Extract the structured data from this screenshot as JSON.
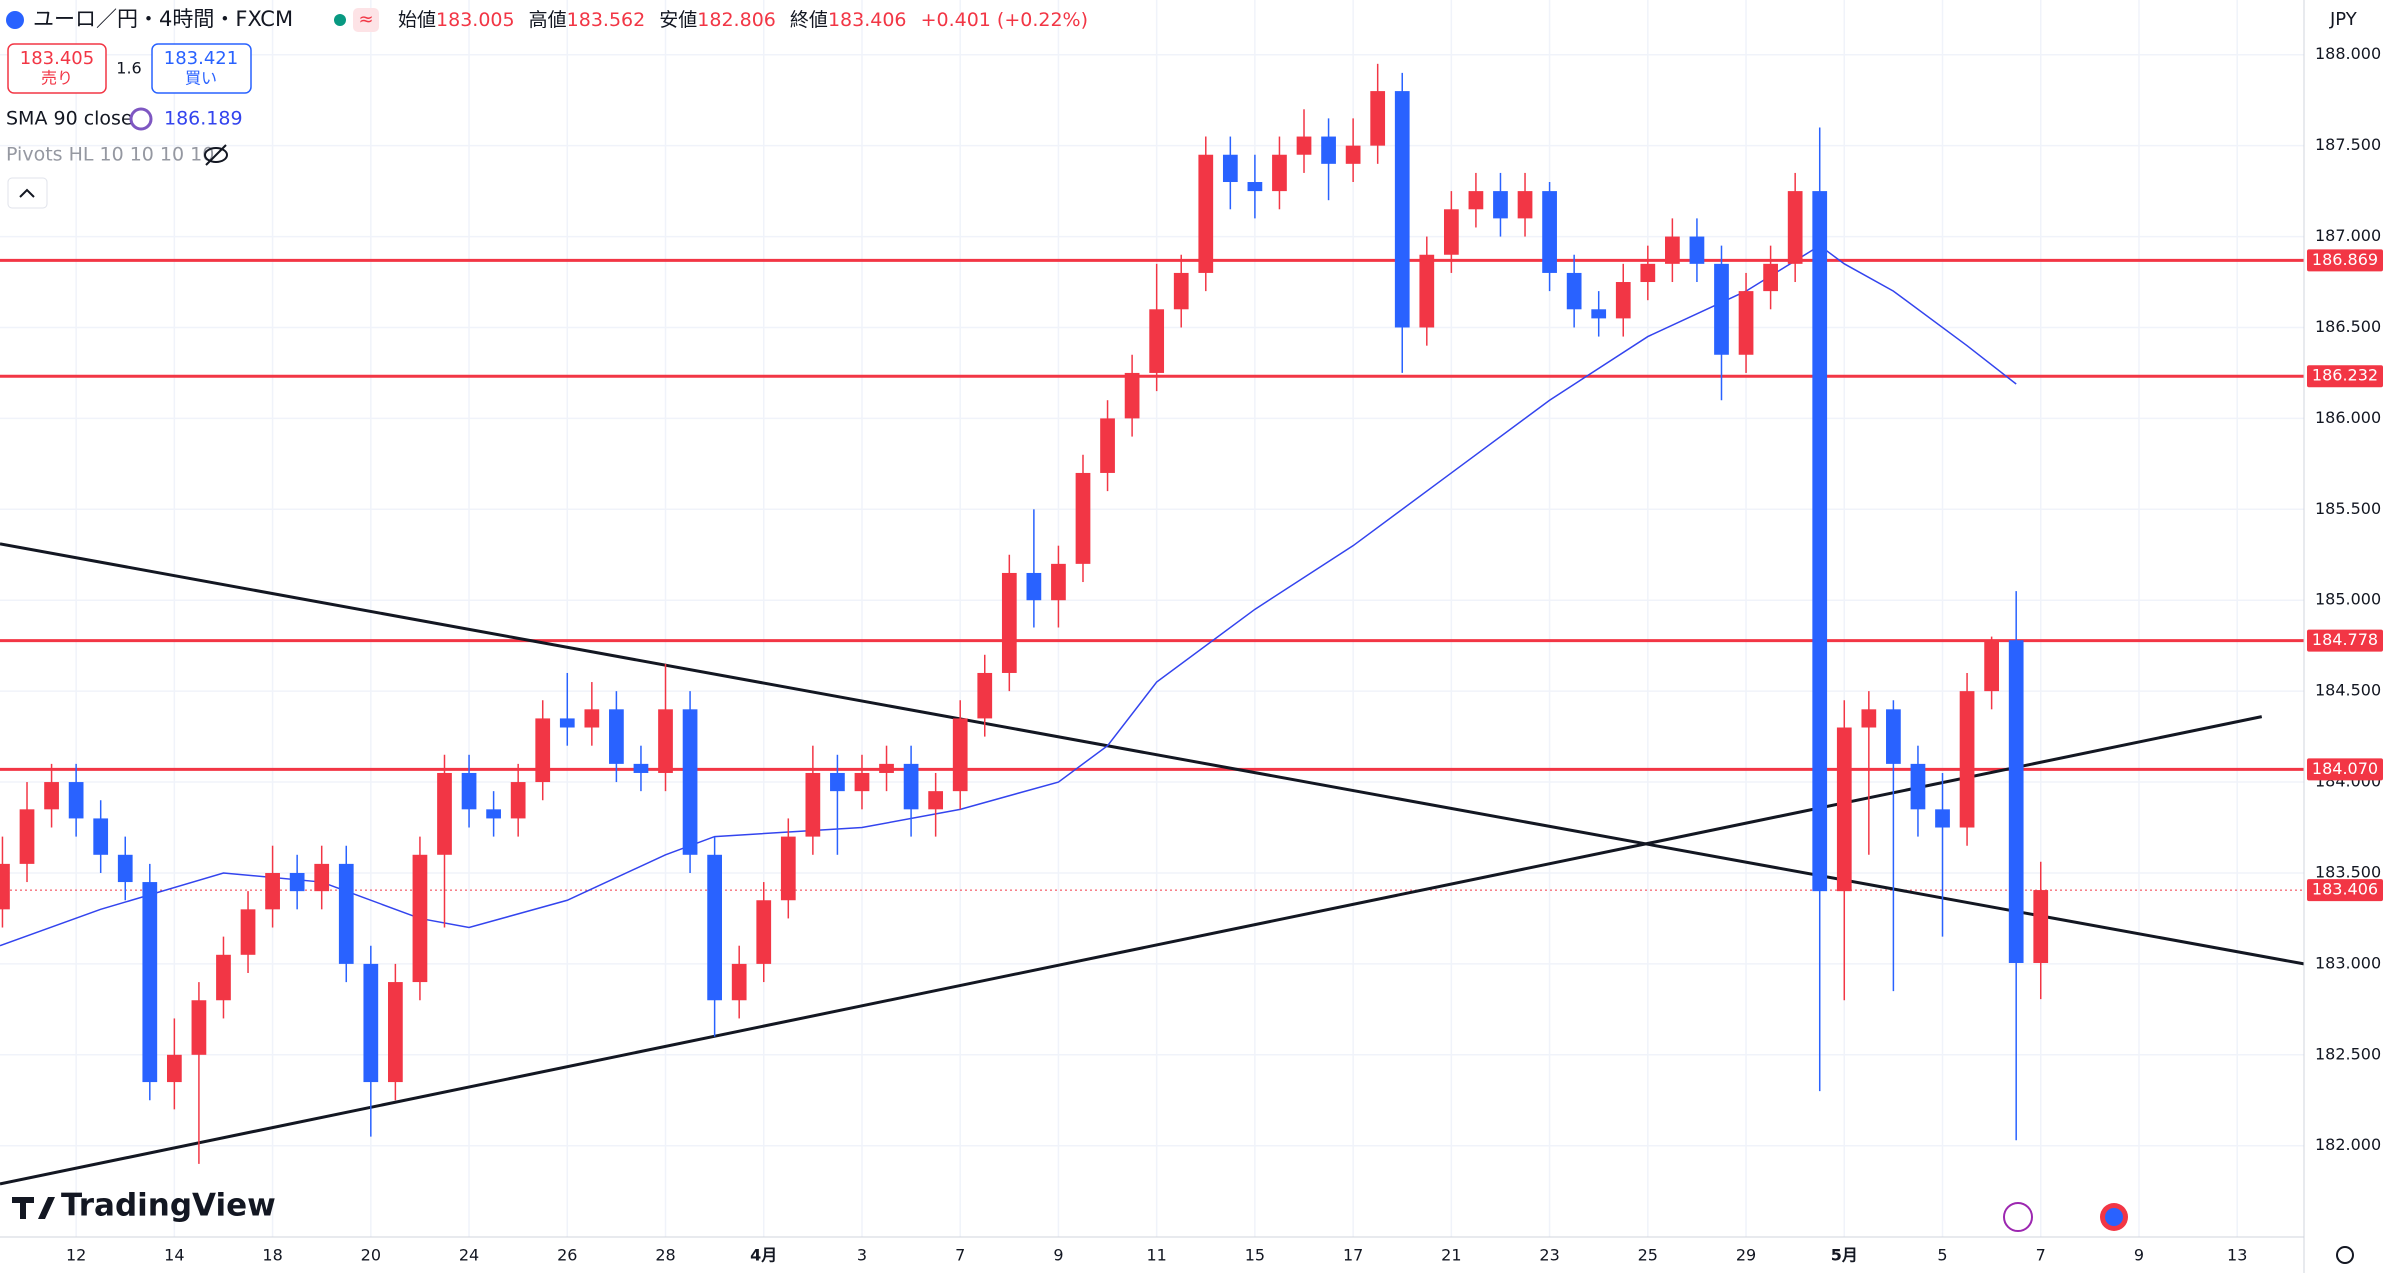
{
  "header": {
    "symbol": "ユーロ／円・4時間・FXCM",
    "ohlc_labels": [
      "始値",
      "高値",
      "安値",
      "終値"
    ],
    "change": "+0.401 (+0.22%)",
    "sell": {
      "price": "183.405",
      "label": "売り"
    },
    "spread": "1.6",
    "buy": {
      "price": "183.421",
      "label": "買い"
    },
    "currency": "JPY",
    "pivots": "Pivots HL 10 10 10 10",
    "brand": "TradingView"
  },
  "chart_data": {
    "type": "candlestick",
    "up_color": "#f23645",
    "down_color": "#2962ff",
    "grid": true,
    "xlim": [
      -1.55,
      45.36
    ],
    "ylim": [
      181.498,
      188.301
    ],
    "xticks": [
      {
        "value": 0,
        "label": "12"
      },
      {
        "value": 2,
        "label": "14"
      },
      {
        "value": 4,
        "label": "18"
      },
      {
        "value": 6,
        "label": "20"
      },
      {
        "value": 8,
        "label": "24"
      },
      {
        "value": 10,
        "label": "26"
      },
      {
        "value": 12,
        "label": "28"
      },
      {
        "value": 14,
        "label": "4月"
      },
      {
        "value": 16,
        "label": "3"
      },
      {
        "value": 18,
        "label": "7"
      },
      {
        "value": 20,
        "label": "9"
      },
      {
        "value": 22,
        "label": "11"
      },
      {
        "value": 24,
        "label": "15"
      },
      {
        "value": 26,
        "label": "17"
      },
      {
        "value": 28,
        "label": "21"
      },
      {
        "value": 30,
        "label": "23"
      },
      {
        "value": 32,
        "label": "25"
      },
      {
        "value": 34,
        "label": "29"
      },
      {
        "value": 36,
        "label": "5月"
      },
      {
        "value": 38,
        "label": "5"
      },
      {
        "value": 40,
        "label": "7"
      },
      {
        "value": 42,
        "label": "9"
      },
      {
        "value": 44,
        "label": "13"
      }
    ],
    "yticks": [
      {
        "value": 182,
        "label": "182.000"
      },
      {
        "value": 182.5,
        "label": "182.500"
      },
      {
        "value": 183,
        "label": "183.000"
      },
      {
        "value": 183.5,
        "label": "183.500"
      },
      {
        "value": 184,
        "label": "184.000"
      },
      {
        "value": 184.5,
        "label": "184.500"
      },
      {
        "value": 185,
        "label": "185.000"
      },
      {
        "value": 185.5,
        "label": "185.500"
      },
      {
        "value": 186,
        "label": "186.000"
      },
      {
        "value": 186.5,
        "label": "186.500"
      },
      {
        "value": 187,
        "label": "187.000"
      },
      {
        "value": 187.5,
        "label": "187.500"
      },
      {
        "value": 188,
        "label": "188.000"
      }
    ],
    "x": [
      -1.5,
      -1,
      -0.5,
      0,
      0.5,
      1,
      1.5,
      2,
      2.5,
      3,
      3.5,
      4,
      4.5,
      5,
      5.5,
      6,
      6.5,
      7,
      7.5,
      8,
      8.5,
      9,
      9.5,
      10,
      10.5,
      11,
      11.5,
      12,
      12.5,
      13,
      13.5,
      14,
      14.5,
      15,
      15.5,
      16,
      16.5,
      17,
      17.5,
      18,
      18.5,
      19,
      19.5,
      20,
      20.5,
      21,
      21.5,
      22,
      22.5,
      23,
      23.5,
      24,
      24.5,
      25,
      25.5,
      26,
      26.5,
      27,
      27.5,
      28,
      28.5,
      29,
      29.5,
      30,
      30.5,
      31,
      31.5,
      32,
      32.5,
      33,
      33.5,
      34,
      34.5,
      35,
      35.5,
      36,
      36.5,
      37,
      37.5,
      38,
      38.5,
      39,
      39.5,
      40
    ],
    "open": [
      183.3,
      183.55,
      183.85,
      184.0,
      183.8,
      183.6,
      183.45,
      182.35,
      182.5,
      182.8,
      183.05,
      183.3,
      183.5,
      183.4,
      183.55,
      183.0,
      182.35,
      182.9,
      183.6,
      184.05,
      183.85,
      183.8,
      184.0,
      184.35,
      184.3,
      184.4,
      184.1,
      184.05,
      184.4,
      183.6,
      182.8,
      183.0,
      183.35,
      183.7,
      184.05,
      183.95,
      184.05,
      184.1,
      183.85,
      183.95,
      184.35,
      184.6,
      185.15,
      185.0,
      185.2,
      185.7,
      186.0,
      186.25,
      186.6,
      186.8,
      187.45,
      187.3,
      187.25,
      187.45,
      187.55,
      187.4,
      187.5,
      187.8,
      186.5,
      186.9,
      187.15,
      187.25,
      187.1,
      187.25,
      186.8,
      186.6,
      186.55,
      186.75,
      186.85,
      187.0,
      186.85,
      186.35,
      186.7,
      186.85,
      187.25,
      183.4,
      184.3,
      184.4,
      184.1,
      183.85,
      183.75,
      184.5,
      184.78,
      183.005
    ],
    "high": [
      183.7,
      184.0,
      184.1,
      184.1,
      183.9,
      183.7,
      183.55,
      182.7,
      182.9,
      183.15,
      183.4,
      183.65,
      183.6,
      183.65,
      183.65,
      183.1,
      183.0,
      183.7,
      184.15,
      184.15,
      183.95,
      184.1,
      184.45,
      184.6,
      184.55,
      184.5,
      184.2,
      184.65,
      184.5,
      183.7,
      183.1,
      183.45,
      183.8,
      184.2,
      184.15,
      184.15,
      184.2,
      184.2,
      184.05,
      184.45,
      184.7,
      185.25,
      185.5,
      185.3,
      185.8,
      186.1,
      186.35,
      186.85,
      186.9,
      187.55,
      187.55,
      187.45,
      187.55,
      187.7,
      187.65,
      187.65,
      187.95,
      187.9,
      187.0,
      187.25,
      187.35,
      187.35,
      187.35,
      187.3,
      186.9,
      186.7,
      186.85,
      186.95,
      187.1,
      187.1,
      186.95,
      186.8,
      186.95,
      187.35,
      187.6,
      184.45,
      184.5,
      184.45,
      184.2,
      184.05,
      184.6,
      184.8,
      185.05,
      183.562
    ],
    "low": [
      183.2,
      183.45,
      183.75,
      183.7,
      183.5,
      183.35,
      182.25,
      182.2,
      181.9,
      182.7,
      182.95,
      183.2,
      183.3,
      183.3,
      182.9,
      182.05,
      182.25,
      182.8,
      183.2,
      183.75,
      183.7,
      183.7,
      183.9,
      184.2,
      184.2,
      184.0,
      183.95,
      183.95,
      183.5,
      182.6,
      182.7,
      182.9,
      183.25,
      183.6,
      183.6,
      183.85,
      183.95,
      183.7,
      183.7,
      183.85,
      184.25,
      184.5,
      184.85,
      184.85,
      185.1,
      185.6,
      185.9,
      186.15,
      186.5,
      186.7,
      187.15,
      187.1,
      187.15,
      187.35,
      187.2,
      187.3,
      187.4,
      186.25,
      186.4,
      186.8,
      187.05,
      187.0,
      187.0,
      186.7,
      186.5,
      186.45,
      186.45,
      186.65,
      186.75,
      186.75,
      186.1,
      186.25,
      186.6,
      186.75,
      182.3,
      182.8,
      183.6,
      182.85,
      183.7,
      183.15,
      183.65,
      184.4,
      182.03,
      182.806
    ],
    "close": [
      183.55,
      183.85,
      184.0,
      183.8,
      183.6,
      183.45,
      182.35,
      182.5,
      182.8,
      183.05,
      183.3,
      183.5,
      183.4,
      183.55,
      183.0,
      182.35,
      182.9,
      183.6,
      184.05,
      183.85,
      183.8,
      184.0,
      184.35,
      184.3,
      184.4,
      184.1,
      184.05,
      184.4,
      183.6,
      182.8,
      183.0,
      183.35,
      183.7,
      184.05,
      183.95,
      184.05,
      184.1,
      183.85,
      183.95,
      184.35,
      184.6,
      185.15,
      185.0,
      185.2,
      185.7,
      186.0,
      186.25,
      186.6,
      186.8,
      187.45,
      187.3,
      187.25,
      187.45,
      187.55,
      187.4,
      187.5,
      187.8,
      186.5,
      186.9,
      187.15,
      187.25,
      187.1,
      187.25,
      186.8,
      186.6,
      186.55,
      186.75,
      186.85,
      187.0,
      186.85,
      186.35,
      186.7,
      186.85,
      187.25,
      183.4,
      184.3,
      184.4,
      184.1,
      183.85,
      183.75,
      184.5,
      184.78,
      183.005,
      183.406
    ],
    "sma": {
      "name": "SMA 90 close",
      "color": "#3344ee",
      "x": [
        -1.55,
        0.5,
        3,
        5,
        7,
        8,
        10,
        12,
        13,
        16,
        18,
        20,
        21,
        22,
        24,
        26,
        28,
        30,
        32,
        34,
        35.5,
        36,
        37,
        38.5,
        39.5
      ],
      "values": [
        183.1,
        183.3,
        183.5,
        183.45,
        183.25,
        183.2,
        183.35,
        183.6,
        183.7,
        183.75,
        183.85,
        184.0,
        184.2,
        184.55,
        184.95,
        185.3,
        185.7,
        186.1,
        186.45,
        186.7,
        186.95,
        186.85,
        186.7,
        186.4,
        186.189
      ]
    },
    "levels": {
      "color": "#f23645",
      "values": [
        {
          "value": 186.869,
          "label": "186.869"
        },
        {
          "value": 186.232,
          "label": "186.232"
        },
        {
          "value": 184.778,
          "label": "184.778"
        },
        {
          "value": 184.07,
          "label": "184.070"
        }
      ]
    },
    "last_price": {
      "value": 183.406,
      "label": "183.406"
    },
    "trendlines": [
      {
        "x": [
          -1.55,
          45.36
        ],
        "y": [
          185.31,
          183.0
        ]
      },
      {
        "x": [
          -1.55,
          44.5
        ],
        "y": [
          181.79,
          184.36
        ]
      }
    ]
  }
}
